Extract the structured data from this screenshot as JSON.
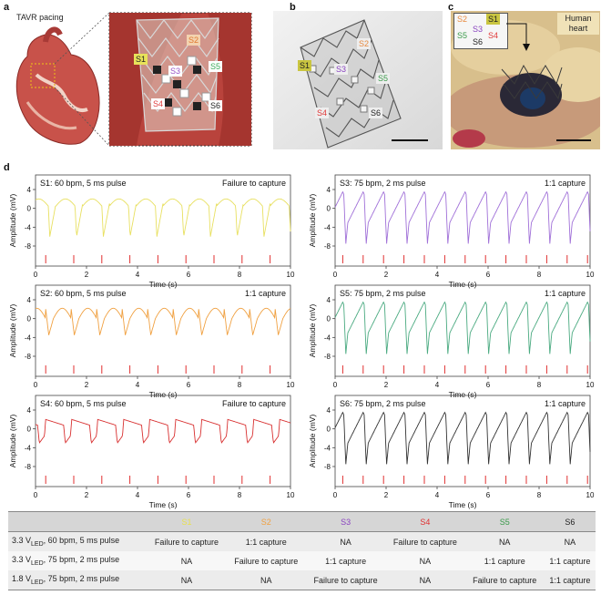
{
  "panel_labels": {
    "a": "a",
    "b": "b",
    "c": "c",
    "d": "d"
  },
  "panel_a": {
    "title": "TAVR pacing",
    "sites": [
      {
        "label": "S1",
        "color": "#e8e25a"
      },
      {
        "label": "S2",
        "color": "#f0a060"
      },
      {
        "label": "S3",
        "color": "#9a55c8"
      },
      {
        "label": "S4",
        "color": "#e04040"
      },
      {
        "label": "S5",
        "color": "#3caa5a"
      },
      {
        "label": "S6",
        "color": "#222222"
      }
    ]
  },
  "panel_b": {
    "sites": [
      {
        "label": "S1",
        "color": "#c9c540"
      },
      {
        "label": "S2",
        "color": "#e88a40"
      },
      {
        "label": "S3",
        "color": "#8a44c0"
      },
      {
        "label": "S4",
        "color": "#e03a3a"
      },
      {
        "label": "S5",
        "color": "#3a9a4a"
      },
      {
        "label": "S6",
        "color": "#222222"
      }
    ]
  },
  "panel_c": {
    "annotation": "Human heart",
    "legend": [
      {
        "label": "S2",
        "color": "#e88a40"
      },
      {
        "label": "S1",
        "color": "#c9c540"
      },
      {
        "label": "S3",
        "color": "#8a44c0"
      },
      {
        "label": "S5",
        "color": "#3a9a4a"
      },
      {
        "label": "S4",
        "color": "#e03a3a"
      },
      {
        "label": "S6",
        "color": "#222222"
      }
    ]
  },
  "chart_data": [
    {
      "type": "line",
      "site": "S1",
      "title": "S1: 60 bpm, 5 ms pulse",
      "status": "Failure to capture",
      "color": "#e8e060",
      "xlabel": "Time (s)",
      "ylabel": "Amplitude (mV)",
      "xlim": [
        0,
        10
      ],
      "ylim": [
        -8,
        4
      ],
      "xticks": [
        0,
        2,
        4,
        6,
        8,
        10
      ],
      "yticks": [
        -8,
        -4,
        0,
        4
      ],
      "bpm": 60,
      "mode": "failure",
      "stim_times": [
        0.4,
        1.5,
        2.6,
        3.7,
        4.8,
        5.9,
        7.0,
        8.1,
        9.2
      ]
    },
    {
      "type": "line",
      "site": "S3",
      "title": "S3: 75 bpm, 2 ms pulse",
      "status": "1:1 capture",
      "color": "#a070d8",
      "xlabel": "Time (s)",
      "ylabel": "Amplitude (mV)",
      "xlim": [
        0,
        10
      ],
      "ylim": [
        -8,
        4
      ],
      "xticks": [
        0,
        2,
        4,
        6,
        8,
        10
      ],
      "yticks": [
        -8,
        -4,
        0,
        4
      ],
      "bpm": 75,
      "mode": "capture",
      "stim_times": [
        0.3,
        1.1,
        1.9,
        2.7,
        3.5,
        4.3,
        5.1,
        5.9,
        6.7,
        7.5,
        8.3,
        9.1,
        9.9
      ]
    },
    {
      "type": "line",
      "site": "S2",
      "title": "S2: 60 bpm, 5 ms pulse",
      "status": "1:1 capture",
      "color": "#f0a040",
      "xlabel": "Time (s)",
      "ylabel": "Amplitude (mV)",
      "xlim": [
        0,
        10
      ],
      "ylim": [
        -8,
        4
      ],
      "xticks": [
        0,
        2,
        4,
        6,
        8,
        10
      ],
      "yticks": [
        -8,
        -4,
        0,
        4
      ],
      "bpm": 60,
      "mode": "capture-small",
      "stim_times": [
        0.4,
        1.5,
        2.6,
        3.7,
        4.8,
        5.9,
        7.0,
        8.1,
        9.2
      ]
    },
    {
      "type": "line",
      "site": "S5",
      "title": "S5: 75 bpm, 2 ms pulse",
      "status": "1:1 capture",
      "color": "#4aaa80",
      "xlabel": "Time (s)",
      "ylabel": "Amplitude (mV)",
      "xlim": [
        0,
        10
      ],
      "ylim": [
        -8,
        4
      ],
      "xticks": [
        0,
        2,
        4,
        6,
        8,
        10
      ],
      "yticks": [
        -8,
        -4,
        0,
        4
      ],
      "bpm": 75,
      "mode": "capture",
      "stim_times": [
        0.3,
        1.1,
        1.9,
        2.7,
        3.5,
        4.3,
        5.1,
        5.9,
        6.7,
        7.5,
        8.3,
        9.1,
        9.9
      ]
    },
    {
      "type": "line",
      "site": "S4",
      "title": "S4: 60 bpm, 5 ms pulse",
      "status": "Failure to capture",
      "color": "#d83030",
      "xlabel": "Time (s)",
      "ylabel": "Amplitude (mV)",
      "xlim": [
        0,
        10
      ],
      "ylim": [
        -8,
        4
      ],
      "xticks": [
        0,
        2,
        4,
        6,
        8,
        10
      ],
      "yticks": [
        -8,
        -4,
        0,
        4
      ],
      "bpm": 60,
      "mode": "failure-square",
      "stim_times": [
        0.4,
        1.5,
        2.6,
        3.7,
        4.8,
        5.9,
        7.0,
        8.1,
        9.2
      ]
    },
    {
      "type": "line",
      "site": "S6",
      "title": "S6: 75 bpm, 2 ms pulse",
      "status": "1:1 capture",
      "color": "#333333",
      "xlabel": "Time (s)",
      "ylabel": "Amplitude (mV)",
      "xlim": [
        0,
        10
      ],
      "ylim": [
        -8,
        4
      ],
      "xticks": [
        0,
        2,
        4,
        6,
        8,
        10
      ],
      "yticks": [
        -8,
        -4,
        0,
        4
      ],
      "bpm": 75,
      "mode": "capture",
      "stim_times": [
        0.3,
        1.1,
        1.9,
        2.7,
        3.5,
        4.3,
        5.1,
        5.9,
        6.7,
        7.5,
        8.3,
        9.1,
        9.9
      ]
    }
  ],
  "stim_color": "#e03030",
  "summary_table": {
    "headers": [
      {
        "label": "",
        "color": "#222222"
      },
      {
        "label": "S1",
        "color": "#e8e050"
      },
      {
        "label": "S2",
        "color": "#f0a040"
      },
      {
        "label": "S3",
        "color": "#8a44c0"
      },
      {
        "label": "S4",
        "color": "#e03030"
      },
      {
        "label": "S5",
        "color": "#3a9a4a"
      },
      {
        "label": "S6",
        "color": "#222222"
      }
    ],
    "rows": [
      {
        "condition_pre": "3.3 V",
        "condition_sub": "LED",
        "condition_post": ", 60 bpm, 5 ms pulse",
        "cells": [
          "Failure to capture",
          "1:1 capture",
          "NA",
          "Failure to capture",
          "NA",
          "NA"
        ]
      },
      {
        "condition_pre": "3.3 V",
        "condition_sub": "LED",
        "condition_post": ", 75 bpm, 2 ms pulse",
        "cells": [
          "NA",
          "Failure to capture",
          "1:1 capture",
          "NA",
          "1:1 capture",
          "1:1 capture"
        ]
      },
      {
        "condition_pre": "1.8 V",
        "condition_sub": "LED",
        "condition_post": ", 75 bpm, 2 ms pulse",
        "cells": [
          "NA",
          "NA",
          "Failure to capture",
          "NA",
          "Failure to capture",
          "1:1 capture"
        ]
      }
    ]
  }
}
